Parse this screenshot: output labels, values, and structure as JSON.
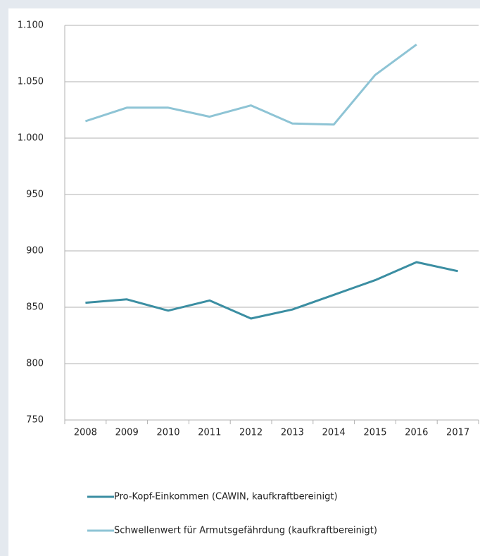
{
  "chart_data": {
    "type": "line",
    "categories": [
      "2008",
      "2009",
      "2010",
      "2011",
      "2012",
      "2013",
      "2014",
      "2015",
      "2016",
      "2017"
    ],
    "series": [
      {
        "name": "Pro-Kopf-Einkommen (CAWIN, kaufkraftbereinigt)",
        "color": "#3b8ea2",
        "values": [
          854,
          857,
          847,
          856,
          840,
          848,
          861,
          874,
          890,
          882
        ]
      },
      {
        "name": "Schwellenwert für Armutsgefährdung (kaufkraftbereinigt)",
        "color": "#8ec4d5",
        "values": [
          1015,
          1027,
          1027,
          1019,
          1029,
          1013,
          1012,
          1056,
          1083,
          null
        ]
      }
    ],
    "ylim": [
      750,
      1100
    ],
    "yticks": [
      750,
      800,
      850,
      900,
      950,
      {
        "value": 1000,
        "label": "1.000"
      },
      {
        "value": 1050,
        "label": "1.050"
      },
      {
        "value": 1100,
        "label": "1.100"
      }
    ],
    "grid": true
  }
}
